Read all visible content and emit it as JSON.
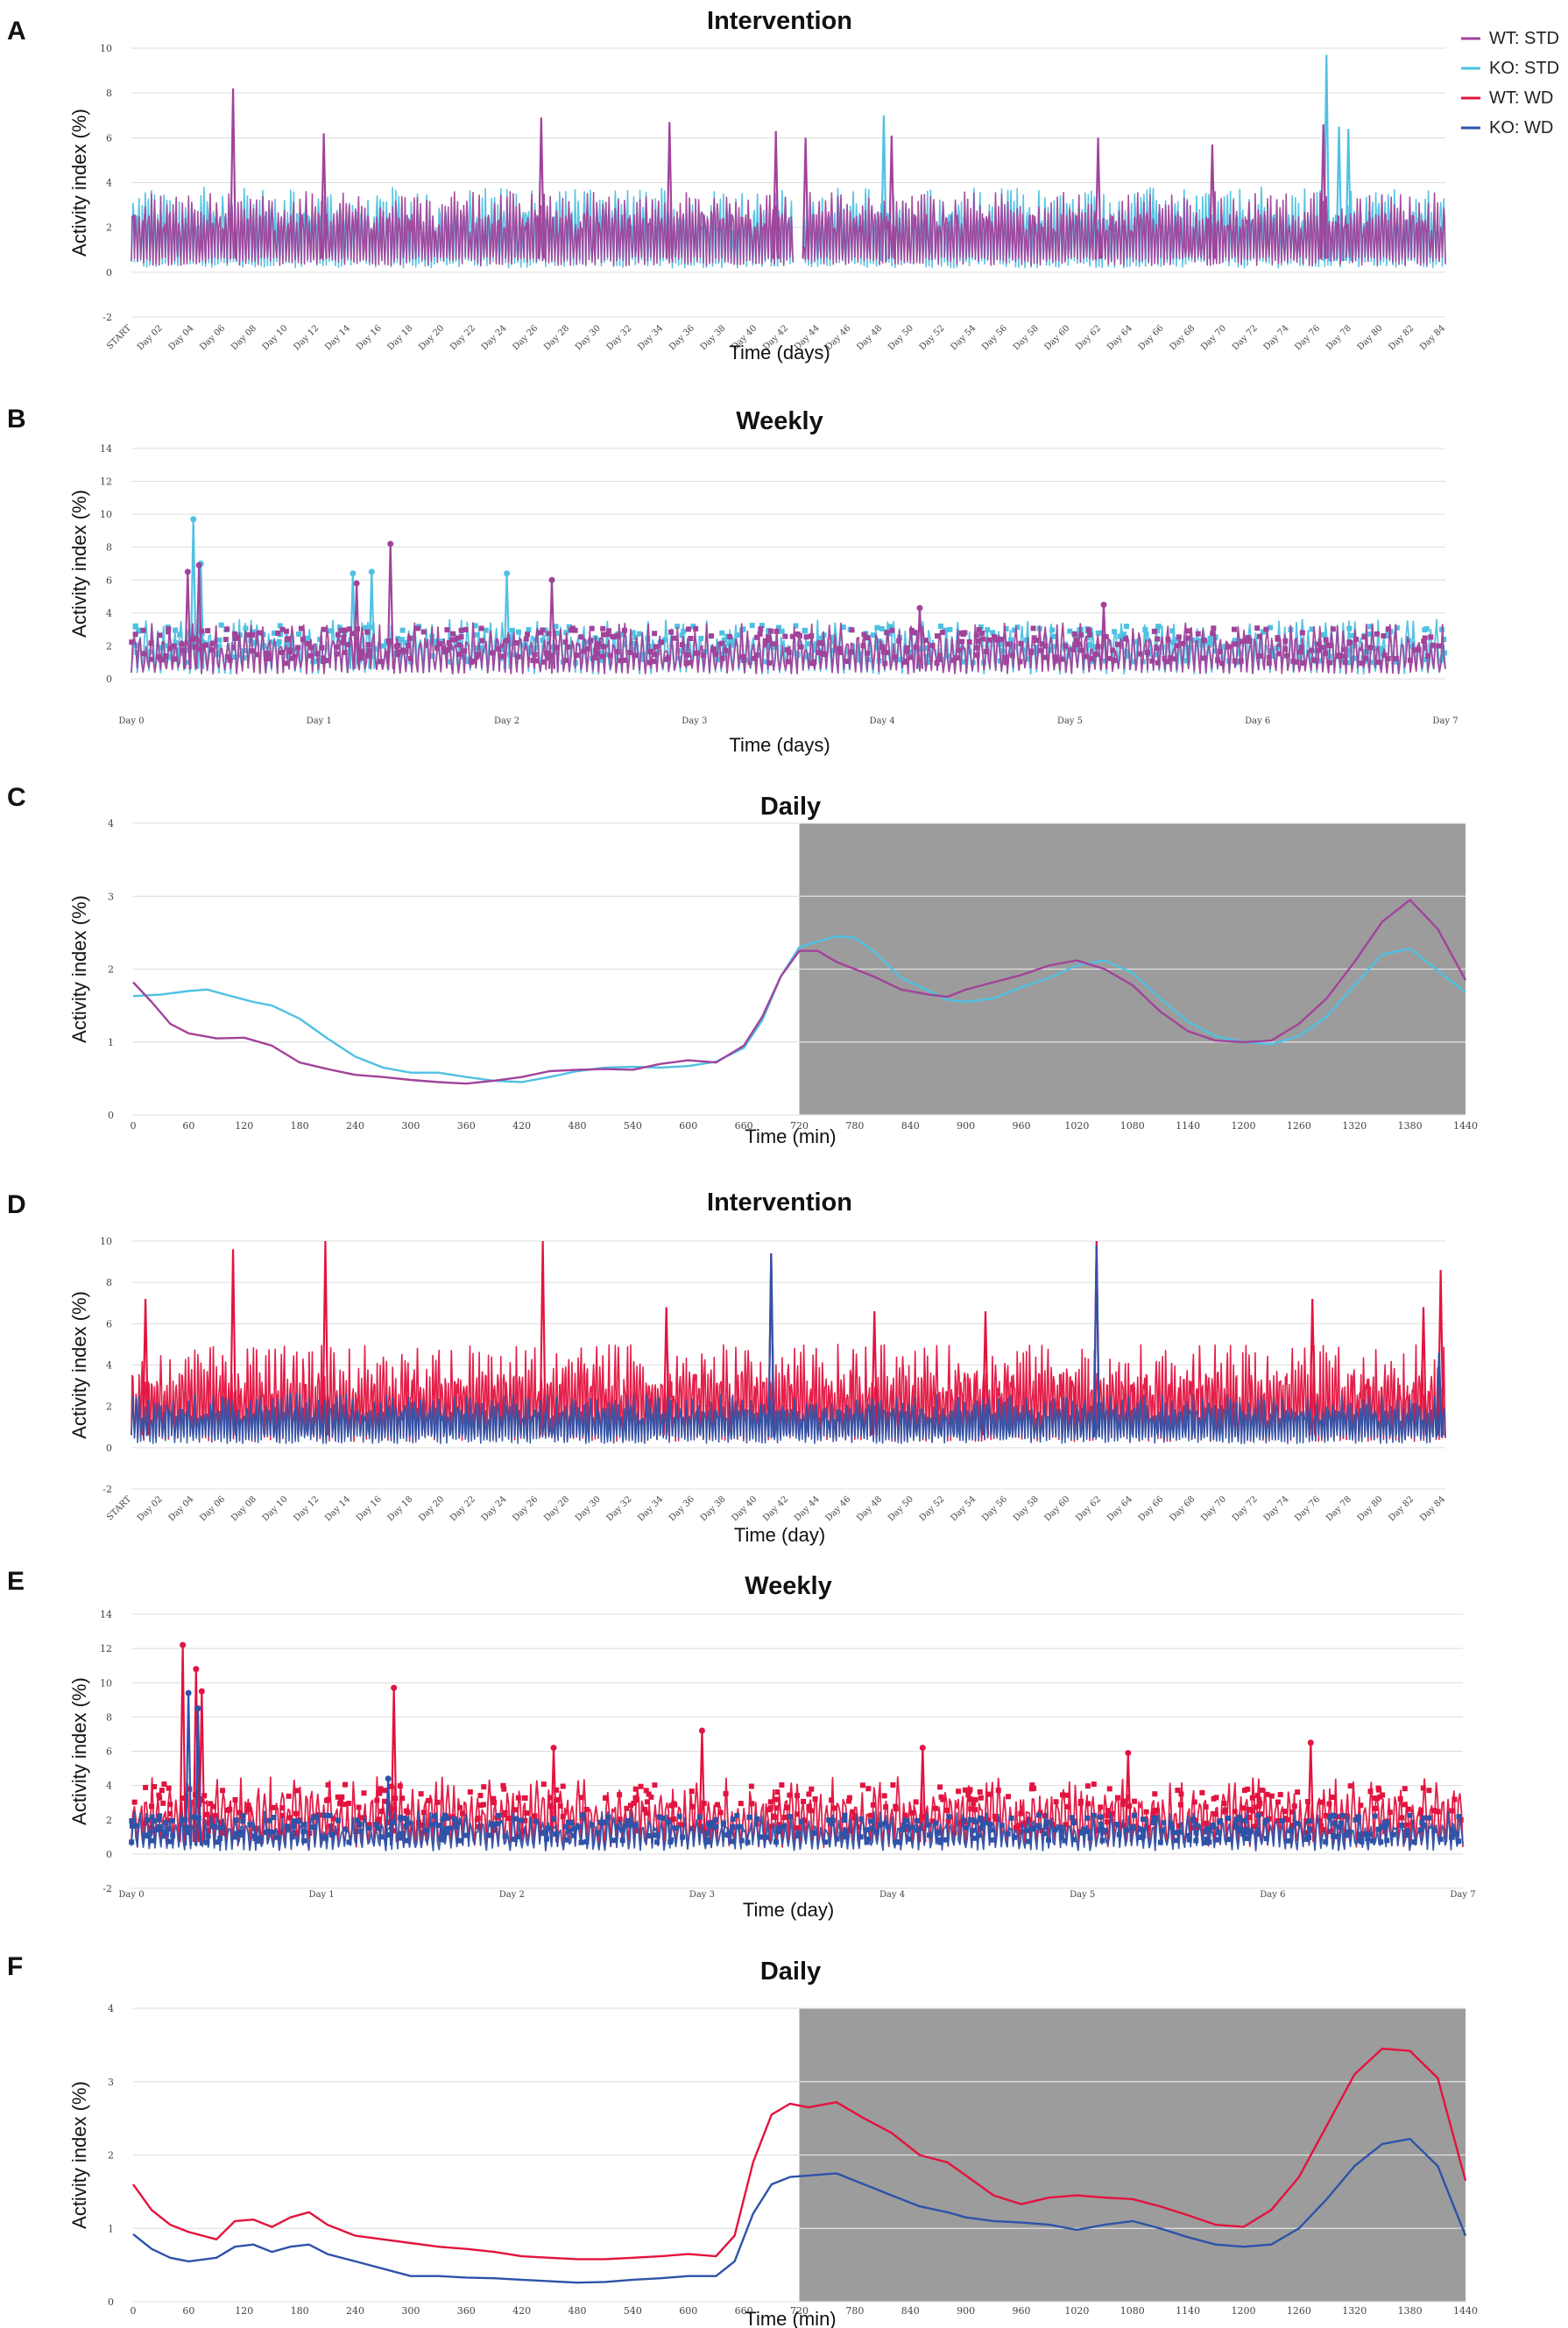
{
  "legend": [
    {
      "label": "WT: STD",
      "color": "#a1439b"
    },
    {
      "label": "KO: STD",
      "color": "#4fc1e3"
    },
    {
      "label": "WT: WD",
      "color": "#e3133f"
    },
    {
      "label": "KO: WD",
      "color": "#2e53a8"
    }
  ],
  "chart_data": [
    {
      "letter": "A",
      "type": "line",
      "title": "Intervention",
      "xlabel": "Time (days)",
      "ylabel": "Activity index (%)",
      "ylim": [
        -2,
        10
      ],
      "yticks": [
        "-2",
        "0",
        "2",
        "4",
        "6",
        "8",
        "10"
      ],
      "xticks": [
        "START",
        "Day 02",
        "Day 04",
        "Day 06",
        "Day 08",
        "Day 10",
        "Day 12",
        "Day 14",
        "Day 16",
        "Day 18",
        "Day 20",
        "Day 22",
        "Day 24",
        "Day 26",
        "Day 28",
        "Day 30",
        "Day 32",
        "Day 34",
        "Day 36",
        "Day 38",
        "Day 40",
        "Day 42",
        "Day 44",
        "Day 46",
        "Day 48",
        "Day 50",
        "Day 52",
        "Day 54",
        "Day 56",
        "Day 58",
        "Day 60",
        "Day 62",
        "Day 64",
        "Day 66",
        "Day 68",
        "Day 70",
        "Day 72",
        "Day 74",
        "Day 76",
        "Day 78",
        "Day 80",
        "Day 82",
        "Day 84"
      ],
      "series": [
        {
          "name": "KO: STD",
          "color": "#4fc1e3",
          "typical_range": [
            0.2,
            3.8
          ],
          "peaks": [
            {
              "day": 48.1,
              "value": 7.0
            },
            {
              "day": 76.4,
              "value": 9.7
            },
            {
              "day": 77.2,
              "value": 6.5
            },
            {
              "day": 77.8,
              "value": 6.4
            }
          ],
          "gap_days": [
            42.3,
            43.0
          ]
        },
        {
          "name": "WT: STD",
          "color": "#a1439b",
          "typical_range": [
            0.3,
            3.6
          ],
          "peaks": [
            {
              "day": 6.5,
              "value": 8.2
            },
            {
              "day": 12.3,
              "value": 6.2
            },
            {
              "day": 26.2,
              "value": 6.9
            },
            {
              "day": 34.4,
              "value": 6.7
            },
            {
              "day": 41.2,
              "value": 6.3
            },
            {
              "day": 43.1,
              "value": 6.0
            },
            {
              "day": 48.6,
              "value": 6.1
            },
            {
              "day": 61.8,
              "value": 6.0
            },
            {
              "day": 69.1,
              "value": 5.7
            },
            {
              "day": 76.2,
              "value": 6.6
            }
          ],
          "gap_days": [
            42.3,
            43.0
          ]
        }
      ]
    },
    {
      "letter": "B",
      "type": "line",
      "title": "Weekly",
      "xlabel": "Time (days)",
      "ylabel": "Activity index (%)",
      "ylim": [
        0,
        14
      ],
      "yticks": [
        "0",
        "2",
        "4",
        "6",
        "8",
        "10",
        "12",
        "14"
      ],
      "xticks": [
        "Day 0",
        "Day 1",
        "Day 2",
        "Day 3",
        "Day 4",
        "Day 5",
        "Day 6",
        "Day 7"
      ],
      "series": [
        {
          "name": "KO: STD",
          "color": "#4fc1e3",
          "typical_range": [
            0.3,
            3.6
          ],
          "peaks": [
            {
              "day": 0.33,
              "value": 9.7
            },
            {
              "day": 0.37,
              "value": 7.0
            },
            {
              "day": 1.18,
              "value": 6.4
            },
            {
              "day": 1.28,
              "value": 6.5
            },
            {
              "day": 2.0,
              "value": 6.4
            }
          ]
        },
        {
          "name": "WT: STD",
          "color": "#a1439b",
          "typical_range": [
            0.3,
            3.4
          ],
          "peaks": [
            {
              "day": 0.3,
              "value": 6.5
            },
            {
              "day": 0.36,
              "value": 6.9
            },
            {
              "day": 1.38,
              "value": 8.2
            },
            {
              "day": 1.2,
              "value": 5.8
            },
            {
              "day": 2.24,
              "value": 6.0
            },
            {
              "day": 4.2,
              "value": 4.3
            },
            {
              "day": 5.18,
              "value": 4.5
            }
          ]
        }
      ]
    },
    {
      "letter": "C",
      "type": "line",
      "title": "Daily",
      "xlabel": "Time (min)",
      "ylabel": "Activity index (%)",
      "ylim": [
        0,
        4
      ],
      "yticks": [
        "0",
        "1",
        "2",
        "3",
        "4"
      ],
      "xticks": [
        "0",
        "60",
        "120",
        "180",
        "240",
        "300",
        "360",
        "420",
        "480",
        "540",
        "600",
        "660",
        "720",
        "780",
        "840",
        "900",
        "960",
        "1020",
        "1080",
        "1140",
        "1200",
        "1260",
        "1320",
        "1380",
        "1440"
      ],
      "shaded_region_min": [
        720,
        1440
      ],
      "series": [
        {
          "name": "KO: STD",
          "color": "#4fc1e3",
          "x": [
            0,
            30,
            60,
            80,
            100,
            130,
            150,
            180,
            210,
            240,
            270,
            300,
            330,
            360,
            390,
            420,
            450,
            480,
            510,
            540,
            570,
            600,
            630,
            660,
            680,
            700,
            720,
            740,
            760,
            780,
            800,
            830,
            860,
            880,
            900,
            930,
            960,
            990,
            1020,
            1050,
            1080,
            1110,
            1140,
            1170,
            1200,
            1230,
            1260,
            1290,
            1320,
            1350,
            1380,
            1410,
            1440
          ],
          "values": [
            1.63,
            1.65,
            1.7,
            1.72,
            1.65,
            1.55,
            1.5,
            1.32,
            1.05,
            0.8,
            0.65,
            0.58,
            0.58,
            0.52,
            0.47,
            0.45,
            0.52,
            0.6,
            0.65,
            0.66,
            0.65,
            0.67,
            0.73,
            0.92,
            1.3,
            1.9,
            2.3,
            2.38,
            2.45,
            2.43,
            2.25,
            1.88,
            1.7,
            1.58,
            1.55,
            1.6,
            1.75,
            1.88,
            2.05,
            2.12,
            1.95,
            1.6,
            1.28,
            1.08,
            1.0,
            0.97,
            1.08,
            1.35,
            1.78,
            2.2,
            2.28,
            1.98,
            1.68
          ]
        },
        {
          "name": "WT: STD",
          "color": "#a1439b",
          "x": [
            0,
            20,
            40,
            60,
            90,
            120,
            150,
            180,
            210,
            240,
            270,
            300,
            330,
            360,
            390,
            420,
            450,
            480,
            510,
            540,
            570,
            600,
            630,
            660,
            680,
            700,
            720,
            740,
            760,
            780,
            800,
            830,
            860,
            880,
            900,
            930,
            960,
            990,
            1020,
            1050,
            1080,
            1110,
            1140,
            1170,
            1200,
            1230,
            1260,
            1290,
            1320,
            1350,
            1380,
            1410,
            1440
          ],
          "values": [
            1.82,
            1.55,
            1.25,
            1.12,
            1.05,
            1.06,
            0.95,
            0.72,
            0.63,
            0.55,
            0.52,
            0.48,
            0.45,
            0.43,
            0.47,
            0.52,
            0.6,
            0.62,
            0.63,
            0.62,
            0.7,
            0.75,
            0.72,
            0.95,
            1.35,
            1.9,
            2.25,
            2.25,
            2.1,
            2.0,
            1.9,
            1.72,
            1.65,
            1.62,
            1.72,
            1.82,
            1.92,
            2.05,
            2.12,
            2.0,
            1.78,
            1.42,
            1.15,
            1.02,
            1.0,
            1.02,
            1.25,
            1.6,
            2.1,
            2.65,
            2.95,
            2.55,
            1.85
          ]
        }
      ]
    },
    {
      "letter": "D",
      "type": "line",
      "title": "Intervention",
      "xlabel": "Time (day)",
      "ylabel": "Activity index (%)",
      "ylim": [
        -2,
        10
      ],
      "yticks": [
        "-2",
        "0",
        "2",
        "4",
        "6",
        "8",
        "10"
      ],
      "xticks": [
        "START",
        "Day 02",
        "Day 04",
        "Day 06",
        "Day 08",
        "Day 10",
        "Day 12",
        "Day 14",
        "Day 16",
        "Day 18",
        "Day 20",
        "Day 22",
        "Day 24",
        "Day 26",
        "Day 28",
        "Day 30",
        "Day 32",
        "Day 34",
        "Day 36",
        "Day 38",
        "Day 40",
        "Day 42",
        "Day 44",
        "Day 46",
        "Day 48",
        "Day 50",
        "Day 52",
        "Day 54",
        "Day 56",
        "Day 58",
        "Day 60",
        "Day 62",
        "Day 64",
        "Day 66",
        "Day 68",
        "Day 70",
        "Day 72",
        "Day 74",
        "Day 76",
        "Day 78",
        "Day 80",
        "Day 82",
        "Day 84"
      ],
      "series": [
        {
          "name": "WT: WD",
          "color": "#e3133f",
          "typical_range": [
            0.3,
            5.0
          ],
          "peaks": [
            {
              "day": 0.9,
              "value": 7.2
            },
            {
              "day": 6.5,
              "value": 9.6
            },
            {
              "day": 12.4,
              "value": 10.0
            },
            {
              "day": 26.3,
              "value": 10.0
            },
            {
              "day": 34.2,
              "value": 6.8
            },
            {
              "day": 40.9,
              "value": 9.4
            },
            {
              "day": 47.5,
              "value": 6.6
            },
            {
              "day": 54.6,
              "value": 6.6
            },
            {
              "day": 61.7,
              "value": 10.0
            },
            {
              "day": 75.5,
              "value": 7.2
            },
            {
              "day": 82.6,
              "value": 6.8
            },
            {
              "day": 83.7,
              "value": 8.6
            }
          ]
        },
        {
          "name": "KO: WD",
          "color": "#2e53a8",
          "typical_range": [
            0.2,
            2.6
          ],
          "peaks": [
            {
              "day": 40.9,
              "value": 9.4
            },
            {
              "day": 61.7,
              "value": 9.8
            },
            {
              "day": 83.6,
              "value": 4.6
            }
          ]
        }
      ]
    },
    {
      "letter": "E",
      "type": "line",
      "title": "Weekly",
      "xlabel": "Time (day)",
      "ylabel": "Activity index (%)",
      "ylim": [
        -2,
        14
      ],
      "yticks": [
        "-2",
        "0",
        "2",
        "4",
        "6",
        "8",
        "10",
        "12",
        "14"
      ],
      "xticks": [
        "Day 0",
        "Day 1",
        "Day 2",
        "Day 3",
        "Day 4",
        "Day 5",
        "Day 6",
        "Day 7"
      ],
      "series": [
        {
          "name": "WT: WD",
          "color": "#e3133f",
          "typical_range": [
            0.4,
            4.5
          ],
          "peaks": [
            {
              "day": 0.27,
              "value": 12.2
            },
            {
              "day": 0.34,
              "value": 10.8
            },
            {
              "day": 0.37,
              "value": 9.5
            },
            {
              "day": 1.38,
              "value": 9.7
            },
            {
              "day": 2.22,
              "value": 6.2
            },
            {
              "day": 3.0,
              "value": 7.2
            },
            {
              "day": 4.16,
              "value": 6.2
            },
            {
              "day": 5.24,
              "value": 5.9
            },
            {
              "day": 6.2,
              "value": 6.5
            }
          ]
        },
        {
          "name": "KO: WD",
          "color": "#2e53a8",
          "typical_range": [
            0.2,
            2.5
          ],
          "peaks": [
            {
              "day": 0.3,
              "value": 9.4
            },
            {
              "day": 0.35,
              "value": 8.5
            },
            {
              "day": 1.35,
              "value": 4.4
            }
          ]
        }
      ]
    },
    {
      "letter": "F",
      "type": "line",
      "title": "Daily",
      "xlabel": "Time (min)",
      "ylabel": "Activity index (%)",
      "ylim": [
        0,
        4
      ],
      "yticks": [
        "0",
        "1",
        "2",
        "3",
        "4"
      ],
      "xticks": [
        "0",
        "60",
        "120",
        "180",
        "240",
        "300",
        "360",
        "420",
        "480",
        "540",
        "600",
        "660",
        "720",
        "780",
        "840",
        "900",
        "960",
        "1020",
        "1080",
        "1140",
        "1200",
        "1260",
        "1320",
        "1380",
        "1440"
      ],
      "shaded_region_min": [
        720,
        1440
      ],
      "series": [
        {
          "name": "WT: WD",
          "color": "#e3133f",
          "x": [
            0,
            20,
            40,
            60,
            90,
            110,
            130,
            150,
            170,
            190,
            210,
            240,
            270,
            300,
            330,
            360,
            390,
            420,
            450,
            480,
            510,
            540,
            570,
            600,
            630,
            650,
            670,
            690,
            710,
            730,
            760,
            790,
            820,
            850,
            880,
            900,
            930,
            960,
            990,
            1020,
            1050,
            1080,
            1110,
            1140,
            1170,
            1200,
            1230,
            1260,
            1290,
            1320,
            1350,
            1380,
            1410,
            1440
          ],
          "values": [
            1.6,
            1.25,
            1.05,
            0.95,
            0.85,
            1.1,
            1.12,
            1.02,
            1.15,
            1.22,
            1.05,
            0.9,
            0.85,
            0.8,
            0.75,
            0.72,
            0.68,
            0.62,
            0.6,
            0.58,
            0.58,
            0.6,
            0.62,
            0.65,
            0.62,
            0.9,
            1.9,
            2.55,
            2.7,
            2.65,
            2.72,
            2.5,
            2.3,
            2.0,
            1.9,
            1.72,
            1.45,
            1.33,
            1.42,
            1.45,
            1.42,
            1.4,
            1.3,
            1.18,
            1.05,
            1.02,
            1.25,
            1.7,
            2.4,
            3.1,
            3.45,
            3.42,
            3.05,
            1.65
          ]
        },
        {
          "name": "KO: WD",
          "color": "#2e53a8",
          "x": [
            0,
            20,
            40,
            60,
            90,
            110,
            130,
            150,
            170,
            190,
            210,
            240,
            270,
            300,
            330,
            360,
            390,
            420,
            450,
            480,
            510,
            540,
            570,
            600,
            630,
            650,
            670,
            690,
            710,
            730,
            760,
            790,
            820,
            850,
            880,
            900,
            930,
            960,
            990,
            1020,
            1050,
            1080,
            1110,
            1140,
            1170,
            1200,
            1230,
            1260,
            1290,
            1320,
            1350,
            1380,
            1410,
            1440
          ],
          "values": [
            0.92,
            0.72,
            0.6,
            0.55,
            0.6,
            0.75,
            0.78,
            0.68,
            0.75,
            0.78,
            0.65,
            0.55,
            0.45,
            0.35,
            0.35,
            0.33,
            0.32,
            0.3,
            0.28,
            0.26,
            0.27,
            0.3,
            0.32,
            0.35,
            0.35,
            0.55,
            1.2,
            1.6,
            1.7,
            1.72,
            1.75,
            1.6,
            1.45,
            1.3,
            1.22,
            1.15,
            1.1,
            1.08,
            1.05,
            0.98,
            1.05,
            1.1,
            1.0,
            0.88,
            0.78,
            0.75,
            0.78,
            1.0,
            1.4,
            1.85,
            2.15,
            2.22,
            1.85,
            0.9
          ]
        }
      ]
    }
  ]
}
